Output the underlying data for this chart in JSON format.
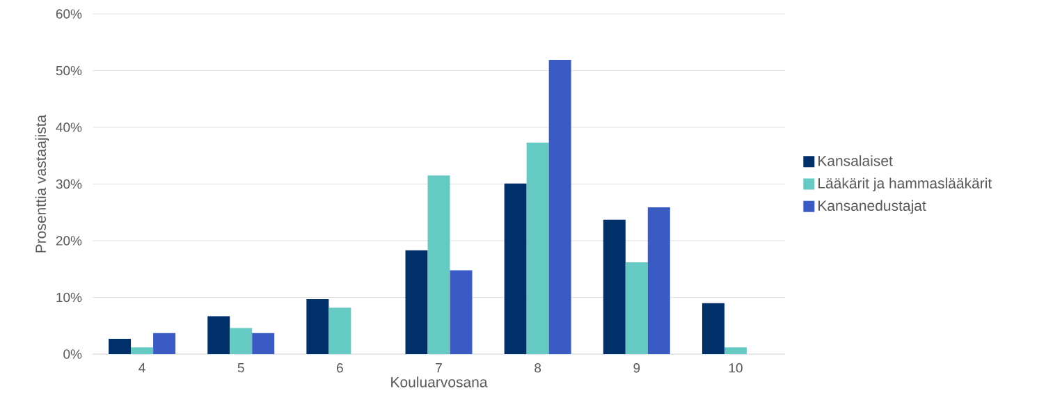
{
  "chart_data": {
    "type": "bar",
    "xlabel": "Kouluarvosana",
    "ylabel": "Prosenttia vastaajista",
    "categories": [
      "4",
      "5",
      "6",
      "7",
      "8",
      "9",
      "10"
    ],
    "series": [
      {
        "name": "Kansalaiset",
        "color": "#003069",
        "values": [
          2.7,
          6.7,
          9.7,
          18.3,
          30.1,
          23.7,
          9.0
        ]
      },
      {
        "name": "Lääkärit ja hammaslääkärit",
        "color": "#66cac4",
        "values": [
          1.2,
          4.6,
          8.2,
          31.5,
          37.3,
          16.2,
          1.2
        ]
      },
      {
        "name": "Kansanedustajat",
        "color": "#3a5bc4",
        "values": [
          3.7,
          3.7,
          null,
          14.8,
          51.9,
          25.9,
          null
        ]
      }
    ],
    "ylim": [
      0,
      60
    ],
    "yticks": [
      {
        "value": 0,
        "label": "0%"
      },
      {
        "value": 10,
        "label": "10%"
      },
      {
        "value": 20,
        "label": "20%"
      },
      {
        "value": 30,
        "label": "30%"
      },
      {
        "value": 40,
        "label": "40%"
      },
      {
        "value": 50,
        "label": "50%"
      },
      {
        "value": 60,
        "label": "60%"
      }
    ],
    "grid": "y",
    "legend": "right"
  }
}
